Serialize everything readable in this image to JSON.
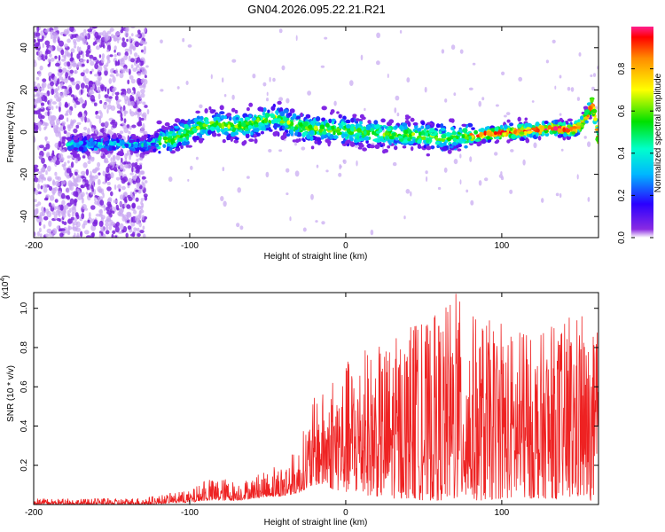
{
  "title": "GN04.2026.095.22.21.R21",
  "colors": {
    "snr_line": "#ee2222",
    "spectrogram_low": "#6a1bd8",
    "spectrogram_high": "#ff1f5a"
  },
  "chart_data": [
    {
      "type": "heatmap",
      "name": "spectrogram",
      "xlabel": "Height of straight line (km)",
      "ylabel": "Frequency (Hz)",
      "xlim": [
        -200,
        162
      ],
      "ylim": [
        -50,
        50
      ],
      "xticks": [
        -200,
        -100,
        0,
        100
      ],
      "yticks": [
        -40,
        -20,
        0,
        20,
        40
      ],
      "grid": false,
      "ridge": {
        "x": [
          -175,
          -150,
          -130,
          -110,
          -95,
          -85,
          -75,
          -65,
          -55,
          -45,
          -35,
          -25,
          -10,
          0,
          10,
          25,
          40,
          55,
          65,
          75,
          90,
          105,
          120,
          135,
          145,
          150,
          155,
          158,
          162
        ],
        "freq": [
          -6,
          -6,
          -6,
          -3,
          2,
          4,
          3,
          3,
          5,
          7,
          4,
          2,
          1,
          1,
          0,
          -1,
          -1,
          -2,
          -3,
          -2,
          -1,
          0,
          1,
          2,
          1,
          3,
          8,
          14,
          -3
        ]
      },
      "colorbar": {
        "label": "Normalized spectral amplitude",
        "range": [
          0.0,
          1.0
        ],
        "ticks": [
          0.0,
          0.2,
          0.4,
          0.6,
          0.8
        ],
        "tick_labels": [
          "0.0",
          "0.2",
          "0.4",
          "0.6",
          "0.8"
        ]
      }
    },
    {
      "type": "line",
      "name": "snr",
      "xlabel": "Height of straight line (km)",
      "ylabel": "SNR (10 * v/v)",
      "multiplier_label": "(x10",
      "multiplier_exp": "4",
      "multiplier_close": ")",
      "xlim": [
        -200,
        162
      ],
      "ylim": [
        0,
        1.08
      ],
      "xticks": [
        -200,
        -100,
        0,
        100
      ],
      "yticks": [
        0.2,
        0.4,
        0.6,
        0.8,
        1.0
      ],
      "ytick_labels": [
        "0.2",
        "0.4",
        "0.6",
        "0.8",
        "1.0"
      ],
      "grid": false,
      "envelope": {
        "x": [
          -200,
          -150,
          -125,
          -110,
          -100,
          -90,
          -80,
          -70,
          -60,
          -50,
          -40,
          -30,
          -25,
          -20,
          -10,
          0,
          10,
          20,
          30,
          40,
          50,
          60,
          70,
          80,
          90,
          100,
          110,
          120,
          130,
          140,
          150,
          155,
          162
        ],
        "floor": [
          0.0,
          0.0,
          0.0,
          0.01,
          0.01,
          0.02,
          0.02,
          0.02,
          0.03,
          0.04,
          0.04,
          0.06,
          0.08,
          0.1,
          0.08,
          0.06,
          0.05,
          0.04,
          0.03,
          0.03,
          0.02,
          0.02,
          0.02,
          0.02,
          0.02,
          0.03,
          0.03,
          0.03,
          0.03,
          0.03,
          0.03,
          0.02,
          0.02
        ],
        "peak": [
          0.03,
          0.03,
          0.04,
          0.06,
          0.07,
          0.12,
          0.14,
          0.12,
          0.14,
          0.17,
          0.22,
          0.3,
          0.45,
          0.55,
          0.6,
          0.72,
          0.78,
          0.8,
          0.85,
          0.9,
          0.92,
          0.98,
          1.08,
          0.98,
          0.95,
          0.92,
          0.88,
          0.85,
          0.9,
          0.93,
          1.0,
          0.85,
          0.88
        ]
      }
    }
  ]
}
